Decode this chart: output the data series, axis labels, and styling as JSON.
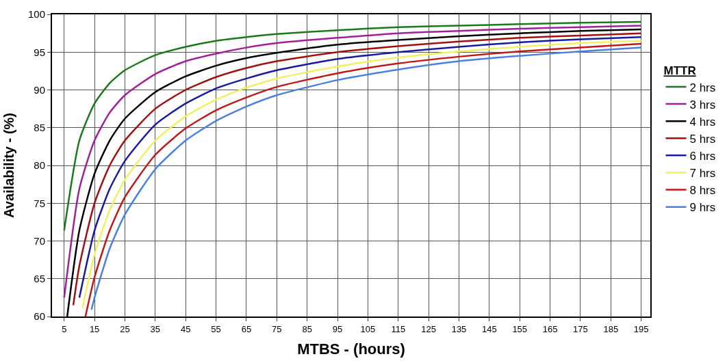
{
  "chart_data": {
    "type": "line",
    "xlabel": "MTBS - (hours)",
    "ylabel": "Availability - (%)",
    "legend_title": "MTTR",
    "xlim": [
      1,
      198
    ],
    "xticks": [
      5,
      15,
      25,
      35,
      45,
      55,
      65,
      75,
      85,
      95,
      105,
      115,
      125,
      135,
      145,
      155,
      165,
      175,
      185,
      195
    ],
    "ylim": [
      60,
      100
    ],
    "yticks": [
      60,
      65,
      70,
      75,
      80,
      85,
      90,
      95,
      100
    ],
    "grid": true,
    "legend": "right",
    "marker": "none",
    "line_style": "solid",
    "series": [
      {
        "name": "2 hrs",
        "color": "#1a7a1a",
        "x": [
          5,
          10,
          15,
          20,
          25,
          35,
          45,
          55,
          65,
          75,
          95,
          115,
          135,
          155,
          175,
          195
        ],
        "values": [
          71.4,
          83.3,
          88.2,
          90.9,
          92.6,
          94.6,
          95.7,
          96.5,
          97.0,
          97.4,
          97.9,
          98.3,
          98.5,
          98.7,
          98.9,
          99.0
        ]
      },
      {
        "name": "3 hrs",
        "color": "#a0209a",
        "x": [
          5,
          10,
          15,
          20,
          25,
          35,
          45,
          55,
          65,
          75,
          95,
          115,
          135,
          155,
          175,
          195
        ],
        "values": [
          62.5,
          76.9,
          83.3,
          87.0,
          89.3,
          92.1,
          93.8,
          94.8,
          95.6,
          96.2,
          96.9,
          97.5,
          97.8,
          98.1,
          98.3,
          98.5
        ]
      },
      {
        "name": "4 hrs",
        "color": "#000000",
        "x": [
          6,
          10,
          15,
          20,
          25,
          35,
          45,
          55,
          65,
          75,
          95,
          115,
          135,
          155,
          175,
          195
        ],
        "values": [
          60.0,
          71.4,
          78.9,
          83.3,
          86.2,
          89.7,
          91.8,
          93.2,
          94.2,
          94.9,
          96.0,
          96.6,
          97.1,
          97.5,
          97.8,
          98.0
        ]
      },
      {
        "name": "5 hrs",
        "color": "#a01010",
        "x": [
          8,
          10,
          15,
          20,
          25,
          35,
          45,
          55,
          65,
          75,
          95,
          115,
          135,
          155,
          175,
          195
        ],
        "values": [
          61.5,
          66.7,
          75.0,
          80.0,
          83.3,
          87.5,
          90.0,
          91.7,
          92.9,
          93.8,
          95.0,
          95.8,
          96.4,
          96.9,
          97.2,
          97.5
        ]
      },
      {
        "name": "6 hrs",
        "color": "#1a1aa0",
        "x": [
          10,
          15,
          20,
          25,
          35,
          45,
          55,
          65,
          75,
          95,
          115,
          135,
          155,
          175,
          195
        ],
        "values": [
          62.5,
          71.4,
          76.9,
          80.6,
          85.4,
          88.2,
          90.2,
          91.5,
          92.6,
          94.1,
          95.0,
          95.7,
          96.3,
          96.7,
          97.0
        ]
      },
      {
        "name": "7 hrs",
        "color": "#f0f060",
        "x": [
          11,
          15,
          20,
          25,
          35,
          45,
          55,
          65,
          75,
          95,
          115,
          135,
          155,
          175,
          195
        ],
        "values": [
          61.1,
          68.2,
          74.1,
          78.1,
          83.3,
          86.5,
          88.7,
          90.3,
          91.5,
          93.1,
          94.3,
          95.1,
          95.7,
          96.2,
          96.5
        ]
      },
      {
        "name": "8 hrs",
        "color": "#c01818",
        "x": [
          12,
          15,
          20,
          25,
          35,
          45,
          55,
          65,
          75,
          95,
          115,
          135,
          155,
          175,
          195
        ],
        "values": [
          60.0,
          65.2,
          71.4,
          75.8,
          81.4,
          84.9,
          87.3,
          89.0,
          90.4,
          92.2,
          93.5,
          94.4,
          95.1,
          95.6,
          96.1
        ]
      },
      {
        "name": "9 hrs",
        "color": "#4a80e0",
        "x": [
          14,
          15,
          20,
          25,
          35,
          45,
          55,
          65,
          75,
          95,
          115,
          135,
          155,
          175,
          195
        ],
        "values": [
          60.9,
          62.5,
          69.0,
          73.5,
          79.5,
          83.3,
          85.9,
          87.8,
          89.3,
          91.3,
          92.7,
          93.8,
          94.5,
          95.1,
          95.6
        ]
      }
    ]
  }
}
